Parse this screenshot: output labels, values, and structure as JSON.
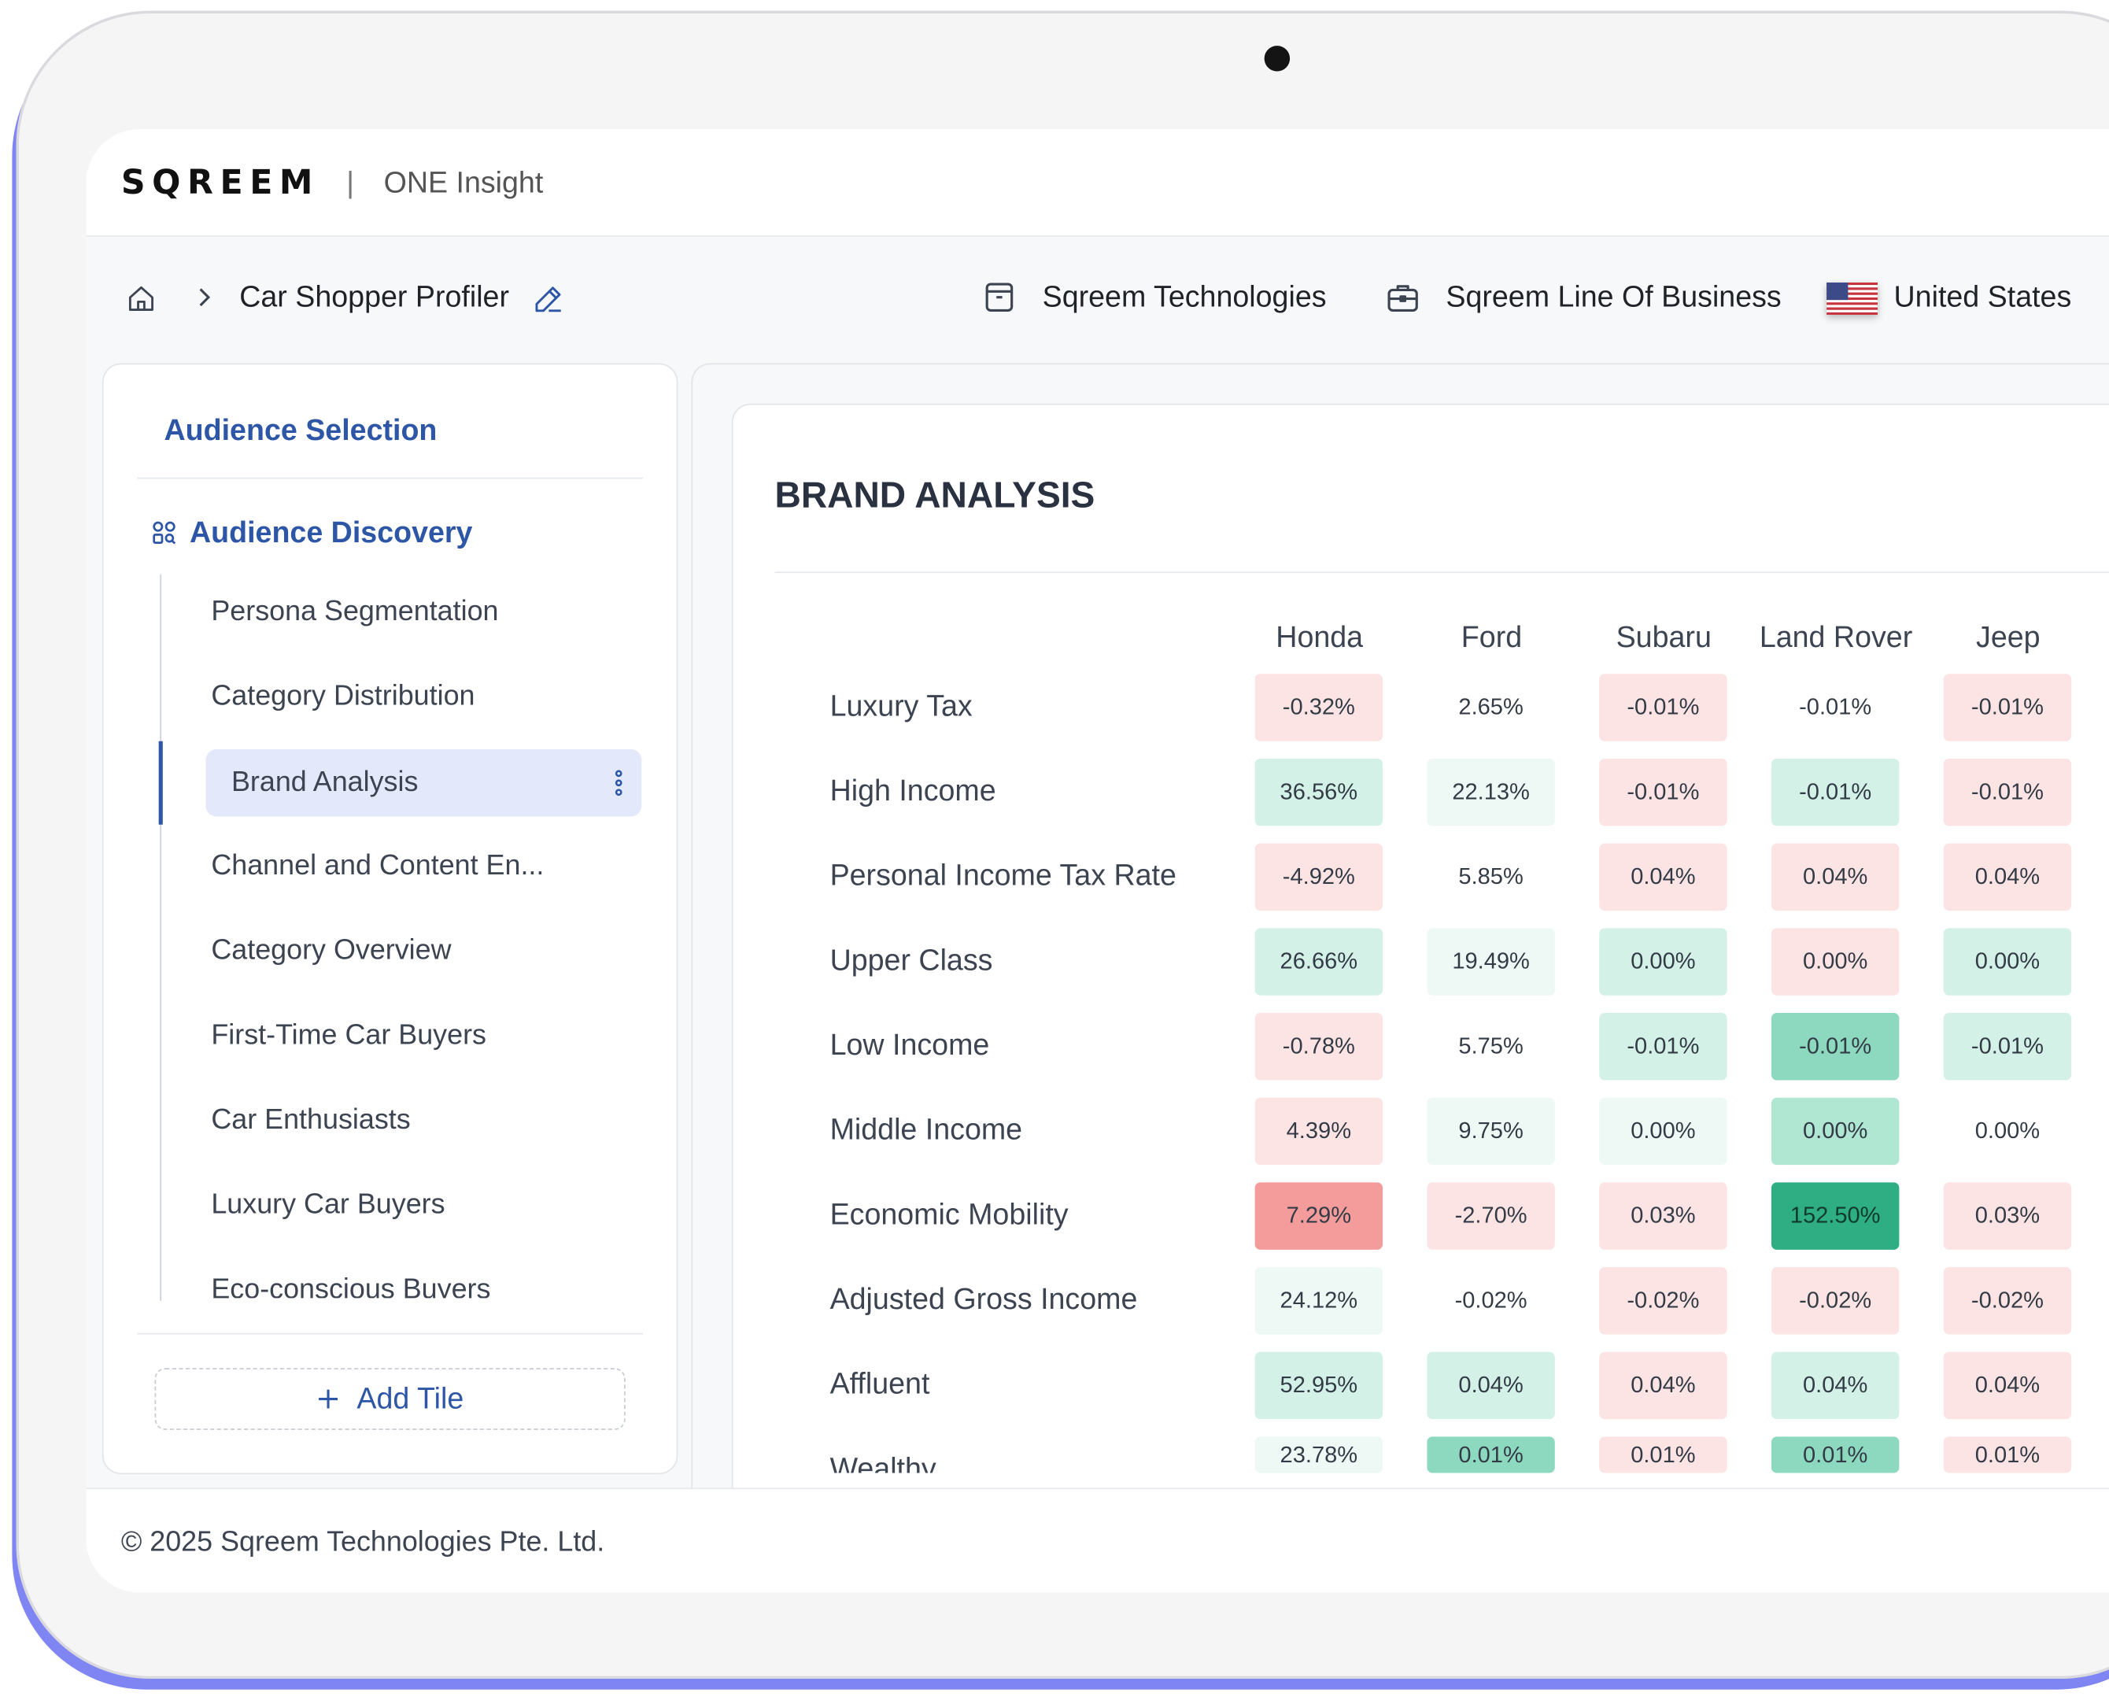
{
  "app": {
    "logo": "SQREEM",
    "separator": "|",
    "product": "ONE Insight"
  },
  "breadcrumb": {
    "current": "Car Shopper Profiler"
  },
  "context": {
    "organization": "Sqreem Technologies",
    "line_of_business": "Sqreem Line Of Business",
    "country": "United States"
  },
  "sidebar": {
    "heading": "Audience Selection",
    "section": "Audience Discovery",
    "items": [
      {
        "label": "Persona Segmentation"
      },
      {
        "label": "Category Distribution"
      },
      {
        "label": "Brand Analysis",
        "active": true
      },
      {
        "label": "Channel and Content En..."
      },
      {
        "label": "Category Overview"
      },
      {
        "label": "First-Time Car Buyers"
      },
      {
        "label": "Car Enthusiasts"
      },
      {
        "label": "Luxury Car Buyers"
      },
      {
        "label": "Eco-conscious Buyers"
      }
    ],
    "add_tile_label": "Add Tile"
  },
  "panel": {
    "title": "BRAND ANALYSIS",
    "columns": [
      "Honda",
      "Ford",
      "Subaru",
      "Land Rover",
      "Jeep"
    ],
    "rows": [
      {
        "label": "Luxury Tax",
        "values": [
          "-0.32%",
          "2.65%",
          "-0.01%",
          "-0.01%",
          "-0.01%"
        ],
        "colors": [
          "#fde4e4",
          "#ffffff",
          "#fde4e4",
          "#ffffff",
          "#fde4e4"
        ]
      },
      {
        "label": "High Income",
        "values": [
          "36.56%",
          "22.13%",
          "-0.01%",
          "-0.01%",
          "-0.01%"
        ],
        "colors": [
          "#d3f1e6",
          "#eef9f5",
          "#fde4e4",
          "#d3f1e6",
          "#fde4e4"
        ]
      },
      {
        "label": "Personal Income Tax Rate",
        "values": [
          "-4.92%",
          "5.85%",
          "0.04%",
          "0.04%",
          "0.04%"
        ],
        "colors": [
          "#fde4e4",
          "#ffffff",
          "#fde4e4",
          "#fde4e4",
          "#fde4e4"
        ]
      },
      {
        "label": "Upper Class",
        "values": [
          "26.66%",
          "19.49%",
          "0.00%",
          "0.00%",
          "0.00%"
        ],
        "colors": [
          "#d3f1e6",
          "#eef9f5",
          "#d3f1e6",
          "#fde4e4",
          "#d3f1e6"
        ]
      },
      {
        "label": "Low Income",
        "values": [
          "-0.78%",
          "5.75%",
          "-0.01%",
          "-0.01%",
          "-0.01%"
        ],
        "colors": [
          "#fde4e4",
          "#ffffff",
          "#d3f1e6",
          "#8dd9bf",
          "#d3f1e6"
        ]
      },
      {
        "label": "Middle Income",
        "values": [
          "4.39%",
          "9.75%",
          "0.00%",
          "0.00%",
          "0.00%"
        ],
        "colors": [
          "#fde4e4",
          "#eef9f5",
          "#eef9f5",
          "#b0e7d3",
          "#ffffff"
        ]
      },
      {
        "label": "Economic Mobility",
        "values": [
          "7.29%",
          "-2.70%",
          "0.03%",
          "152.50%",
          "0.03%"
        ],
        "colors": [
          "#f49c9c",
          "#fde4e4",
          "#fde4e4",
          "#2fae83",
          "#fde4e4"
        ]
      },
      {
        "label": "Adjusted Gross Income",
        "values": [
          "24.12%",
          "-0.02%",
          "-0.02%",
          "-0.02%",
          "-0.02%"
        ],
        "colors": [
          "#eef9f5",
          "#ffffff",
          "#fde4e4",
          "#fde4e4",
          "#fde4e4"
        ]
      },
      {
        "label": "Affluent",
        "values": [
          "52.95%",
          "0.04%",
          "0.04%",
          "0.04%",
          "0.04%"
        ],
        "colors": [
          "#d3f1e6",
          "#d3f1e6",
          "#fde4e4",
          "#d3f1e6",
          "#fde4e4"
        ]
      },
      {
        "label": "Wealthy",
        "values": [
          "23.78%",
          "0.01%",
          "0.01%",
          "0.01%",
          "0.01%"
        ],
        "colors": [
          "#eef9f5",
          "#8dd9bf",
          "#fde4e4",
          "#8dd9bf",
          "#fde4e4"
        ]
      }
    ]
  },
  "footer": {
    "copyright": "© 2025 Sqreem Technologies Pte. Ltd."
  },
  "colors": {
    "accent": "#2d56a6",
    "device_shadow": "#7f86f4",
    "active_bg": "#e4e8fb"
  }
}
